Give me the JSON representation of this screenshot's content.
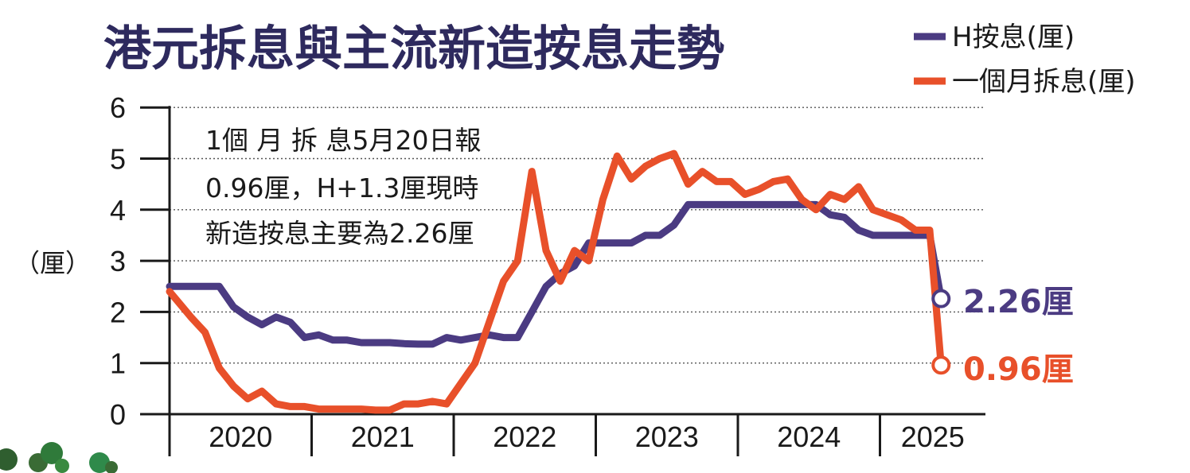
{
  "chart_data": {
    "type": "line",
    "title": "港元拆息與主流新造按息走勢",
    "ylabel": "（厘）",
    "ylim": [
      0,
      6
    ],
    "yticks": [
      "0",
      "1",
      "2",
      "3",
      "4",
      "5",
      "6"
    ],
    "x_categories": [
      "2020",
      "2021",
      "2022",
      "2023",
      "2024",
      "2025"
    ],
    "grid": true,
    "legend_position": "top-right",
    "annotation": [
      "1個 月 拆 息5月20日報",
      "0.96厘，H+1.3厘現時",
      "新造按息主要為2.26厘"
    ],
    "colors": {
      "h_rate": "#4b3b82",
      "hibor": "#e8502a"
    },
    "series": [
      {
        "name": "H按息(厘)",
        "end_label": "2.26厘",
        "x": [
          2019.85,
          2020.0,
          2020.1,
          2020.2,
          2020.3,
          2020.4,
          2020.5,
          2020.6,
          2020.7,
          2020.8,
          2020.9,
          2021.0,
          2021.1,
          2021.2,
          2021.3,
          2021.4,
          2021.5,
          2021.6,
          2021.7,
          2021.8,
          2021.9,
          2022.0,
          2022.1,
          2022.2,
          2022.3,
          2022.4,
          2022.5,
          2022.6,
          2022.7,
          2022.8,
          2022.9,
          2023.0,
          2023.1,
          2023.2,
          2023.3,
          2023.4,
          2023.5,
          2023.6,
          2023.7,
          2023.8,
          2023.9,
          2024.0,
          2024.1,
          2024.2,
          2024.3,
          2024.4,
          2024.5,
          2024.6,
          2024.7,
          2024.8,
          2024.9,
          2025.0,
          2025.1,
          2025.2,
          2025.28
        ],
        "values": [
          2.5,
          2.5,
          2.5,
          2.5,
          2.1,
          1.9,
          1.75,
          1.9,
          1.8,
          1.5,
          1.55,
          1.45,
          1.45,
          1.4,
          1.4,
          1.4,
          1.38,
          1.37,
          1.37,
          1.5,
          1.45,
          1.5,
          1.55,
          1.5,
          1.5,
          2.0,
          2.5,
          2.75,
          2.9,
          3.35,
          3.35,
          3.35,
          3.35,
          3.5,
          3.5,
          3.7,
          4.1,
          4.1,
          4.1,
          4.1,
          4.1,
          4.1,
          4.1,
          4.1,
          4.1,
          4.1,
          3.9,
          3.85,
          3.6,
          3.5,
          3.5,
          3.5,
          3.5,
          3.5,
          2.26
        ]
      },
      {
        "name": "一個月拆息(厘)",
        "end_label": "0.96厘",
        "x": [
          2019.85,
          2020.0,
          2020.1,
          2020.2,
          2020.3,
          2020.4,
          2020.5,
          2020.6,
          2020.7,
          2020.8,
          2020.9,
          2021.0,
          2021.1,
          2021.2,
          2021.3,
          2021.4,
          2021.5,
          2021.6,
          2021.7,
          2021.8,
          2021.9,
          2022.0,
          2022.1,
          2022.2,
          2022.3,
          2022.4,
          2022.5,
          2022.6,
          2022.7,
          2022.8,
          2022.9,
          2023.0,
          2023.1,
          2023.2,
          2023.3,
          2023.4,
          2023.5,
          2023.6,
          2023.7,
          2023.8,
          2023.9,
          2024.0,
          2024.1,
          2024.2,
          2024.3,
          2024.4,
          2024.5,
          2024.6,
          2024.7,
          2024.8,
          2024.9,
          2025.0,
          2025.1,
          2025.2,
          2025.28
        ],
        "values": [
          2.4,
          1.9,
          1.6,
          0.9,
          0.55,
          0.3,
          0.45,
          0.2,
          0.15,
          0.15,
          0.1,
          0.1,
          0.1,
          0.1,
          0.08,
          0.08,
          0.2,
          0.2,
          0.25,
          0.2,
          0.6,
          1.0,
          1.8,
          2.6,
          3.0,
          4.75,
          3.2,
          2.6,
          3.2,
          3.0,
          4.2,
          5.05,
          4.6,
          4.85,
          5.0,
          5.1,
          4.5,
          4.75,
          4.55,
          4.55,
          4.3,
          4.4,
          4.55,
          4.6,
          4.2,
          4.0,
          4.3,
          4.2,
          4.45,
          4.0,
          3.9,
          3.8,
          3.6,
          3.6,
          0.96
        ]
      }
    ]
  }
}
